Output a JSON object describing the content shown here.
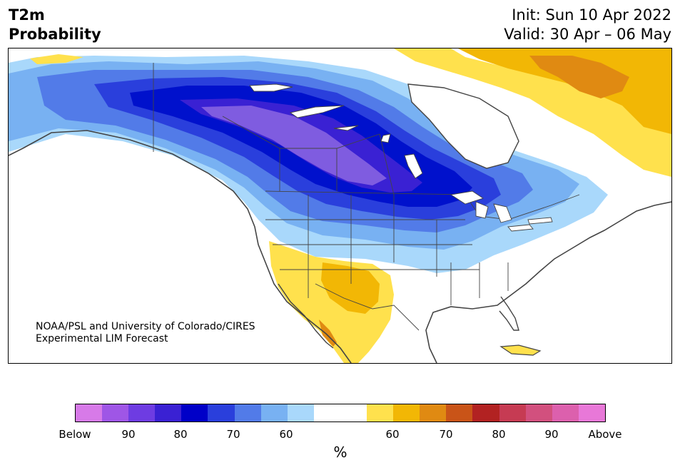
{
  "header": {
    "title_line1": "T2m",
    "title_line2": "Probability",
    "init_line": "Init: Sun 10 Apr 2022",
    "valid_line": "Valid: 30 Apr – 06 May"
  },
  "map": {
    "region": "North America",
    "credit_line1": "NOAA/PSL and University of Colorado/CIRES",
    "credit_line2": "Experimental LIM Forecast",
    "colors": {
      "below_90_plus": "#7f5ce0",
      "below_80_90": "#3a21d3",
      "below_70_80": "#0011cc",
      "below_65_70": "#2a3fdc",
      "below_60_65": "#527be8",
      "below_55_60": "#78b1f2",
      "below_50_55": "#a9d8fb",
      "above_50_60": "#ffe14d",
      "above_60_65": "#f2b705",
      "above_65_70": "#e08a12",
      "coastline": "#444444",
      "lakes": "#ffffff"
    }
  },
  "colorbar": {
    "unit": "%",
    "segment_colors": [
      "#d77ae8",
      "#9f56e6",
      "#6e3ce2",
      "#3a21d3",
      "#0000c8",
      "#2a3fdc",
      "#527be8",
      "#78b1f2",
      "#a9d8fb",
      "#ffffff",
      "#ffffff",
      "#ffe14d",
      "#f2b705",
      "#e08a12",
      "#c95418",
      "#b22222",
      "#c63b53",
      "#d2507e",
      "#dc60ad",
      "#e878d8"
    ],
    "tick_labels": [
      "Below",
      "90",
      "80",
      "70",
      "60",
      "60",
      "70",
      "80",
      "90",
      "Above"
    ]
  }
}
